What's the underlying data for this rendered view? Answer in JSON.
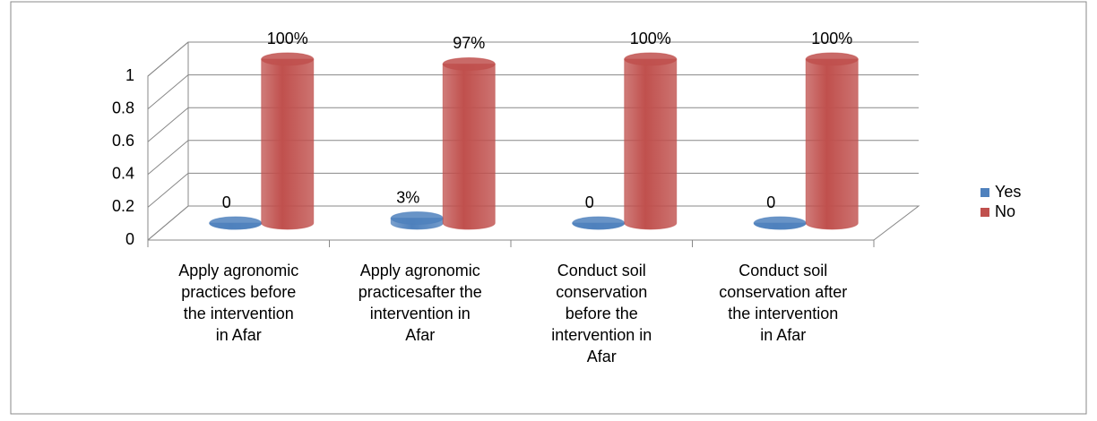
{
  "chart_data": {
    "type": "bar3d",
    "categories": [
      "Apply agronomic practices before the intervention in Afar",
      "Apply agronomic practicesafter the intervention in Afar",
      "Conduct soil conservation before the intervention in Afar",
      "Conduct soil conservation after the intervention in Afar"
    ],
    "series": [
      {
        "name": "Yes",
        "color": "#4f81bd",
        "values": [
          0,
          0.03,
          0,
          0
        ],
        "value_labels": [
          "0",
          "3%",
          "0",
          "0"
        ]
      },
      {
        "name": "No",
        "color": "#c0504d",
        "values": [
          1,
          0.97,
          1,
          1
        ],
        "value_labels": [
          "100%",
          "97%",
          "100%",
          "100%"
        ]
      }
    ],
    "ylim": [
      0,
      1
    ],
    "yticks": [
      0,
      0.2,
      0.4,
      0.6,
      0.8,
      1
    ],
    "grid": true,
    "legend": "right"
  }
}
